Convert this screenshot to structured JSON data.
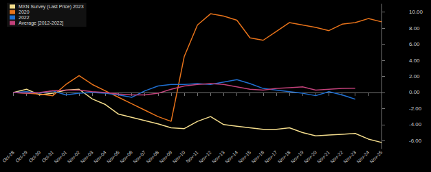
{
  "chart_data": {
    "type": "line",
    "categories": [
      "Oct-28",
      "Oct-29",
      "Oct-30",
      "Oct-31",
      "Nov-01",
      "Nov-02",
      "Nov-03",
      "Nov-04",
      "Nov-05",
      "Nov-06",
      "Nov-07",
      "Nov-08",
      "Nov-09",
      "Nov-10",
      "Nov-11",
      "Nov-12",
      "Nov-13",
      "Nov-14",
      "Nov-15",
      "Nov-16",
      "Nov-17",
      "Nov-18",
      "Nov-19",
      "Nov-20",
      "Nov-21",
      "Nov-22",
      "Nov-23",
      "Nov-24",
      "Nov-25"
    ],
    "series": [
      {
        "name": "MXN Survey (Last Price) 2023",
        "color": "#f3dc8c",
        "values": [
          0,
          0.4,
          -0.3,
          -0.1,
          0.3,
          0.4,
          -0.8,
          -1.5,
          -2.7,
          -3.1,
          -3.5,
          -3.9,
          -4.4,
          -4.5,
          -3.6,
          -3.0,
          -4.0,
          -4.2,
          -4.4,
          -4.6,
          -4.6,
          -4.4,
          -5.0,
          -5.4,
          -5.3,
          -5.2,
          -5.1,
          -5.8,
          -6.2208
        ]
      },
      {
        "name": "2020",
        "color": "#e8731a",
        "values": [
          0,
          -0.1,
          -0.2,
          -0.4,
          1.0,
          2.1,
          1.0,
          0.2,
          -0.6,
          -1.4,
          -2.2,
          -3.0,
          -3.6,
          4.5,
          8.4,
          9.8,
          9.5,
          9.0,
          6.8,
          6.5,
          7.6,
          8.7,
          8.4,
          8.1,
          7.7,
          8.5,
          8.7,
          9.2,
          8.7935
        ]
      },
      {
        "name": "2022",
        "color": "#1f6fd1",
        "values": [
          0,
          0.1,
          -0.1,
          0.2,
          -0.3,
          -0.1,
          0.0,
          -0.1,
          -0.3,
          -0.6,
          0.2,
          0.8,
          1.0,
          1.0,
          1.1,
          1.0,
          1.3,
          1.6,
          1.1,
          0.5,
          0.3,
          0.1,
          -0.1,
          -0.4,
          0.1,
          -0.3,
          -0.8315,
          null,
          null
        ]
      },
      {
        "name": "Average [2012-2022]",
        "color": "#c2417a",
        "values": [
          0,
          -0.1,
          0,
          0.2,
          0.3,
          0.3,
          0.1,
          0,
          -0.2,
          -0.3,
          -0.3,
          -0.1,
          0.4,
          0.8,
          1.0,
          1.1,
          1.0,
          0.7,
          0.4,
          0.3,
          0.5,
          0.6,
          0.7,
          0.3,
          0.4,
          0.5,
          0.5322,
          null,
          null
        ]
      }
    ],
    "ylim": [
      -7,
      11
    ],
    "yticks": [
      {
        "value": -6,
        "label": "-6.00"
      },
      {
        "value": -4,
        "label": "-4.00"
      },
      {
        "value": -2,
        "label": "-2.00"
      },
      {
        "value": 0,
        "label": "0.00"
      },
      {
        "value": 2,
        "label": "2.00"
      },
      {
        "value": 4,
        "label": "4.00"
      },
      {
        "value": 6,
        "label": "6.00"
      },
      {
        "value": 8,
        "label": "8.00"
      },
      {
        "value": 10,
        "label": "10.00"
      }
    ],
    "grid": false,
    "legend": "top-left"
  }
}
